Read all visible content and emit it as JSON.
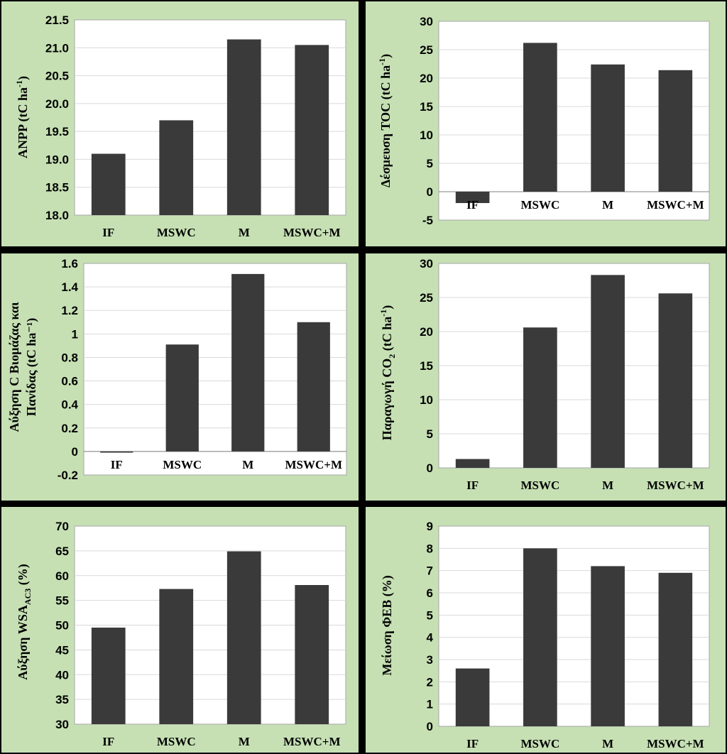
{
  "colors": {
    "panel_bg": "#c6e0b4",
    "bar": "#3a3a3a",
    "frame": "#000000"
  },
  "chart_data": [
    {
      "type": "bar",
      "categories": [
        "IF",
        "MSWC",
        "M",
        "MSWC+M"
      ],
      "values": [
        19.1,
        19.7,
        21.15,
        21.05
      ],
      "ylabel": {
        "main": "ANPP  (tC ha",
        "sup": "-1",
        "end": ")"
      },
      "ylim": [
        18.0,
        21.5
      ],
      "yticks": [
        "18.0",
        "18.5",
        "19.0",
        "19.5",
        "20.0",
        "20.5",
        "21.0",
        "21.5"
      ],
      "ytick_values": [
        18.0,
        18.5,
        19.0,
        19.5,
        20.0,
        20.5,
        21.0,
        21.5
      ],
      "grid": true
    },
    {
      "type": "bar",
      "categories": [
        "IF",
        "MSWC",
        "M",
        "MSWC+M"
      ],
      "values": [
        -2.0,
        26.2,
        22.4,
        21.4
      ],
      "ylabel": {
        "main": "Δέσμευση TOC (tC ha",
        "sup": "-1",
        "end": ")"
      },
      "ylim": [
        -5,
        30
      ],
      "yticks": [
        "-5",
        "0",
        "5",
        "10",
        "15",
        "20",
        "25",
        "30"
      ],
      "ytick_values": [
        -5,
        0,
        5,
        10,
        15,
        20,
        25,
        30
      ],
      "grid": true
    },
    {
      "type": "bar",
      "categories": [
        "IF",
        "MSWC",
        "M",
        "MSWC+M"
      ],
      "values": [
        -0.01,
        0.91,
        1.51,
        1.1
      ],
      "ylabel_lines": [
        "Αύξηση C Βιομάζας και",
        "Πανίδας (tC ha⁻¹)"
      ],
      "ylim": [
        -0.2,
        1.6
      ],
      "yticks": [
        "-0.2",
        "0",
        "0.2",
        "0.4",
        "0.6",
        "0.8",
        "1",
        "1.2",
        "1.4",
        "1.6"
      ],
      "ytick_values": [
        -0.2,
        0,
        0.2,
        0.4,
        0.6,
        0.8,
        1.0,
        1.2,
        1.4,
        1.6
      ],
      "grid": true
    },
    {
      "type": "bar",
      "categories": [
        "IF",
        "MSWC",
        "M",
        "MSWC+M"
      ],
      "values": [
        1.3,
        20.6,
        28.3,
        25.6
      ],
      "ylabel": {
        "main": "Παραγωγή CO",
        "sub": "2",
        "mid": " (tC ha",
        "sup": "-1",
        "end": ")"
      },
      "ylim": [
        0,
        30
      ],
      "yticks": [
        "0",
        "5",
        "10",
        "15",
        "20",
        "25",
        "30"
      ],
      "ytick_values": [
        0,
        5,
        10,
        15,
        20,
        25,
        30
      ],
      "grid": true
    },
    {
      "type": "bar",
      "categories": [
        "IF",
        "MSWC",
        "M",
        "MSWC+M"
      ],
      "values": [
        49.5,
        57.3,
        64.9,
        58.1
      ],
      "ylabel": {
        "main": "Αύξηση WSA",
        "sub": "AC3",
        "end": " (%)"
      },
      "ylim": [
        30,
        70
      ],
      "yticks": [
        "30",
        "35",
        "40",
        "45",
        "50",
        "55",
        "60",
        "65",
        "70"
      ],
      "ytick_values": [
        30,
        35,
        40,
        45,
        50,
        55,
        60,
        65,
        70
      ],
      "grid": true
    },
    {
      "type": "bar",
      "categories": [
        "IF",
        "MSWC",
        "M",
        "MSWC+M"
      ],
      "values": [
        2.6,
        8.0,
        7.2,
        6.9
      ],
      "ylabel": {
        "main": "Μείωση ΦΕΒ (%)"
      },
      "ylim": [
        0,
        9
      ],
      "yticks": [
        "0",
        "1",
        "2",
        "3",
        "4",
        "5",
        "6",
        "7",
        "8",
        "9"
      ],
      "ytick_values": [
        0,
        1,
        2,
        3,
        4,
        5,
        6,
        7,
        8,
        9
      ],
      "grid": true
    }
  ]
}
